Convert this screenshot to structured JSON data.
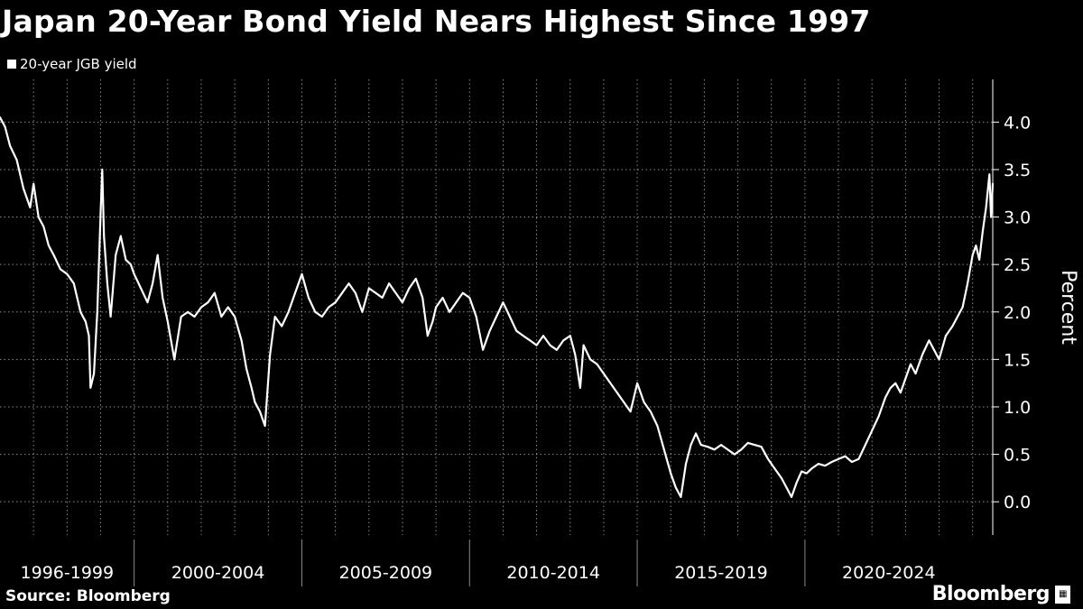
{
  "title": "Japan 20-Year Bond Yield Nears Highest Since 1997",
  "source": "Source: Bloomberg",
  "brand": "Bloomberg",
  "colors": {
    "background": "#000000",
    "line": "#ffffff",
    "grid": "#8a8a8a",
    "text": "#ffffff"
  },
  "chart_data": {
    "type": "line",
    "title": "Japan 20-Year Bond Yield Nears Highest Since 1997",
    "xlabel": "",
    "ylabel": "Percent",
    "ylim": [
      -0.35,
      4.45
    ],
    "xlim": [
      1996.0,
      2025.6
    ],
    "yticks": [
      0.0,
      0.5,
      1.0,
      1.5,
      2.0,
      2.5,
      3.0,
      3.5,
      4.0
    ],
    "ytick_labels": [
      "0.0",
      "0.5",
      "1.0",
      "1.5",
      "2.0",
      "2.5",
      "3.0",
      "3.5",
      "4.0"
    ],
    "x_groups": [
      {
        "label": "1996-1999",
        "start": 1996,
        "end": 2000
      },
      {
        "label": "2000-2004",
        "start": 2000,
        "end": 2005
      },
      {
        "label": "2005-2009",
        "start": 2005,
        "end": 2010
      },
      {
        "label": "2010-2014",
        "start": 2010,
        "end": 2015
      },
      {
        "label": "2015-2019",
        "start": 2015,
        "end": 2020
      },
      {
        "label": "2020-2024",
        "start": 2020,
        "end": 2025
      }
    ],
    "x_gridlines": [
      1997,
      1998,
      1999,
      2000,
      2001,
      2002,
      2003,
      2004,
      2005,
      2006,
      2007,
      2008,
      2009,
      2010,
      2011,
      2012,
      2013,
      2014,
      2015,
      2016,
      2017,
      2018,
      2019,
      2020,
      2021,
      2022,
      2023,
      2024,
      2025
    ],
    "grid": true,
    "legend_position": "top-left",
    "series": [
      {
        "name": "20-year JGB yield",
        "color": "#ffffff",
        "x": [
          1996.0,
          1996.15,
          1996.3,
          1996.5,
          1996.7,
          1996.9,
          1997.0,
          1997.15,
          1997.3,
          1997.45,
          1997.6,
          1997.8,
          1998.0,
          1998.2,
          1998.4,
          1998.55,
          1998.65,
          1998.7,
          1998.8,
          1998.9,
          1998.95,
          1999.0,
          1999.05,
          1999.1,
          1999.2,
          1999.3,
          1999.45,
          1999.6,
          1999.75,
          1999.9,
          2000.0,
          2000.2,
          2000.4,
          2000.55,
          2000.7,
          2000.85,
          2001.0,
          2001.2,
          2001.4,
          2001.6,
          2001.8,
          2002.0,
          2002.2,
          2002.4,
          2002.6,
          2002.8,
          2003.0,
          2003.2,
          2003.35,
          2003.5,
          2003.6,
          2003.75,
          2003.9,
          2004.05,
          2004.2,
          2004.4,
          2004.6,
          2004.8,
          2005.0,
          2005.2,
          2005.4,
          2005.6,
          2005.8,
          2006.0,
          2006.2,
          2006.4,
          2006.6,
          2006.8,
          2007.0,
          2007.2,
          2007.4,
          2007.6,
          2007.8,
          2008.0,
          2008.2,
          2008.4,
          2008.6,
          2008.75,
          2008.9,
          2009.0,
          2009.2,
          2009.4,
          2009.6,
          2009.8,
          2010.0,
          2010.2,
          2010.4,
          2010.6,
          2010.8,
          2011.0,
          2011.2,
          2011.4,
          2011.6,
          2011.8,
          2012.0,
          2012.2,
          2012.4,
          2012.6,
          2012.8,
          2013.0,
          2013.15,
          2013.3,
          2013.4,
          2013.6,
          2013.8,
          2014.0,
          2014.2,
          2014.4,
          2014.6,
          2014.8,
          2015.0,
          2015.2,
          2015.4,
          2015.6,
          2015.8,
          2016.0,
          2016.15,
          2016.3,
          2016.45,
          2016.6,
          2016.75,
          2016.9,
          2017.1,
          2017.3,
          2017.5,
          2017.7,
          2017.9,
          2018.1,
          2018.3,
          2018.5,
          2018.7,
          2018.9,
          2019.1,
          2019.3,
          2019.45,
          2019.6,
          2019.75,
          2019.9,
          2020.05,
          2020.2,
          2020.4,
          2020.6,
          2020.8,
          2021.0,
          2021.2,
          2021.4,
          2021.6,
          2021.8,
          2022.0,
          2022.2,
          2022.4,
          2022.55,
          2022.7,
          2022.85,
          2023.0,
          2023.15,
          2023.3,
          2023.5,
          2023.7,
          2023.85,
          2024.0,
          2024.2,
          2024.4,
          2024.55,
          2024.7,
          2024.85,
          2025.0,
          2025.1,
          2025.2,
          2025.3,
          2025.4,
          2025.5,
          2025.55,
          2025.6
        ],
        "y": [
          4.05,
          3.95,
          3.75,
          3.6,
          3.3,
          3.1,
          3.35,
          3.0,
          2.9,
          2.7,
          2.6,
          2.45,
          2.4,
          2.3,
          2.0,
          1.9,
          1.75,
          1.2,
          1.35,
          2.0,
          2.5,
          3.05,
          3.5,
          2.8,
          2.3,
          1.95,
          2.6,
          2.8,
          2.55,
          2.5,
          2.4,
          2.25,
          2.1,
          2.3,
          2.6,
          2.15,
          1.9,
          1.5,
          1.95,
          2.0,
          1.95,
          2.05,
          2.1,
          2.2,
          1.95,
          2.05,
          1.95,
          1.7,
          1.4,
          1.2,
          1.05,
          0.95,
          0.8,
          1.55,
          1.95,
          1.85,
          2.0,
          2.2,
          2.4,
          2.15,
          2.0,
          1.95,
          2.05,
          2.1,
          2.2,
          2.3,
          2.2,
          2.0,
          2.25,
          2.2,
          2.15,
          2.3,
          2.2,
          2.1,
          2.25,
          2.35,
          2.15,
          1.75,
          1.9,
          2.05,
          2.15,
          2.0,
          2.1,
          2.2,
          2.15,
          1.95,
          1.6,
          1.8,
          1.95,
          2.1,
          1.95,
          1.8,
          1.75,
          1.7,
          1.65,
          1.75,
          1.65,
          1.6,
          1.7,
          1.75,
          1.55,
          1.2,
          1.65,
          1.5,
          1.45,
          1.35,
          1.25,
          1.15,
          1.05,
          0.95,
          1.25,
          1.05,
          0.95,
          0.8,
          0.55,
          0.3,
          0.15,
          0.05,
          0.4,
          0.6,
          0.72,
          0.6,
          0.58,
          0.55,
          0.6,
          0.55,
          0.5,
          0.55,
          0.62,
          0.6,
          0.58,
          0.45,
          0.35,
          0.25,
          0.15,
          0.05,
          0.2,
          0.32,
          0.3,
          0.35,
          0.4,
          0.38,
          0.42,
          0.45,
          0.48,
          0.42,
          0.45,
          0.6,
          0.75,
          0.9,
          1.1,
          1.2,
          1.25,
          1.15,
          1.3,
          1.45,
          1.35,
          1.55,
          1.7,
          1.6,
          1.5,
          1.75,
          1.85,
          1.95,
          2.05,
          2.3,
          2.6,
          2.7,
          2.55,
          2.85,
          3.1,
          3.45,
          3.0,
          3.35
        ]
      }
    ]
  }
}
